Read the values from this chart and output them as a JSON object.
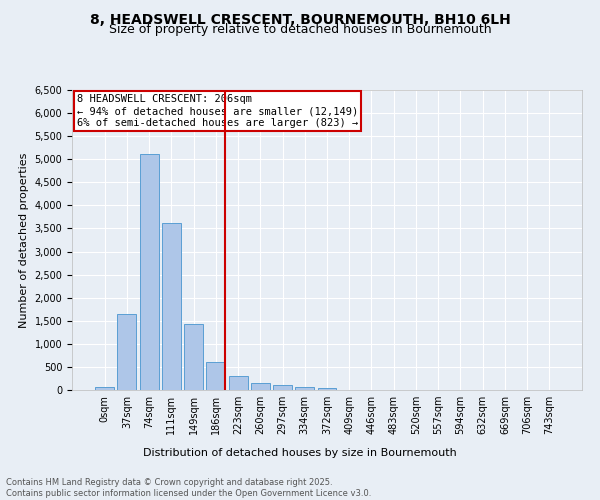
{
  "title1": "8, HEADSWELL CRESCENT, BOURNEMOUTH, BH10 6LH",
  "title2": "Size of property relative to detached houses in Bournemouth",
  "xlabel": "Distribution of detached houses by size in Bournemouth",
  "ylabel": "Number of detached properties",
  "footer1": "Contains HM Land Registry data © Crown copyright and database right 2025.",
  "footer2": "Contains public sector information licensed under the Open Government Licence v3.0.",
  "bin_labels": [
    "0sqm",
    "37sqm",
    "74sqm",
    "111sqm",
    "149sqm",
    "186sqm",
    "223sqm",
    "260sqm",
    "297sqm",
    "334sqm",
    "372sqm",
    "409sqm",
    "446sqm",
    "483sqm",
    "520sqm",
    "557sqm",
    "594sqm",
    "632sqm",
    "669sqm",
    "706sqm",
    "743sqm"
  ],
  "bar_values": [
    60,
    1650,
    5120,
    3620,
    1420,
    610,
    305,
    155,
    100,
    75,
    35,
    10,
    10,
    5,
    3,
    2,
    1,
    1,
    0,
    0,
    0
  ],
  "bar_color": "#aec6e8",
  "bar_edge_color": "#5a9fd4",
  "vline_x": 5.43,
  "vline_color": "#cc0000",
  "annotation_text": "8 HEADSWELL CRESCENT: 206sqm\n← 94% of detached houses are smaller (12,149)\n6% of semi-detached houses are larger (823) →",
  "annotation_box_color": "#cc0000",
  "ylim": [
    0,
    6500
  ],
  "yticks": [
    0,
    500,
    1000,
    1500,
    2000,
    2500,
    3000,
    3500,
    4000,
    4500,
    5000,
    5500,
    6000,
    6500
  ],
  "background_color": "#e8eef5",
  "grid_color": "#ffffff",
  "title_fontsize": 10,
  "subtitle_fontsize": 9,
  "axis_fontsize": 8,
  "tick_fontsize": 7,
  "annotation_fontsize": 7.5,
  "footer_fontsize": 6
}
